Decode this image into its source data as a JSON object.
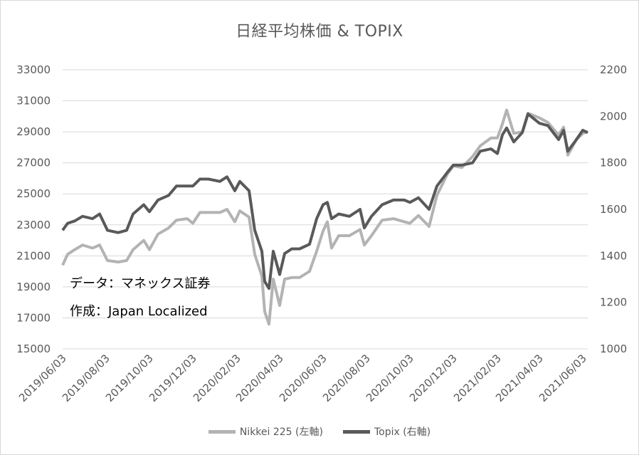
{
  "chart_data": {
    "type": "line",
    "title": "日経平均株価 & TOPIX",
    "annotations": [
      "データ：マネックス証券",
      "作成：Japan Localized"
    ],
    "x_tick_labels": [
      "2019/06/03",
      "2019/08/03",
      "2019/10/03",
      "2019/12/03",
      "2020/02/03",
      "2020/04/03",
      "2020/06/03",
      "2020/08/03",
      "2020/10/03",
      "2020/12/03",
      "2021/02/03",
      "2021/04/03",
      "2021/06/03"
    ],
    "x_range": [
      "2019/06/03",
      "2021/06/10"
    ],
    "y_left": {
      "ticks": [
        15000,
        17000,
        19000,
        21000,
        23000,
        25000,
        27000,
        29000,
        31000,
        33000
      ],
      "range": [
        15000,
        33000
      ]
    },
    "y_right": {
      "ticks": [
        1000,
        1200,
        1400,
        1600,
        1800,
        2000,
        2200
      ],
      "range": [
        1000,
        2200
      ]
    },
    "grid": "horizontal",
    "legend_position": "bottom",
    "series": [
      {
        "name": "Nikkei 225 (左軸)",
        "axis": "left",
        "color": "#b3b3b3",
        "points": [
          [
            "2019/06/03",
            20400
          ],
          [
            "2019/06/10",
            21100
          ],
          [
            "2019/06/20",
            21400
          ],
          [
            "2019/07/01",
            21700
          ],
          [
            "2019/07/15",
            21500
          ],
          [
            "2019/07/25",
            21700
          ],
          [
            "2019/08/05",
            20700
          ],
          [
            "2019/08/20",
            20600
          ],
          [
            "2019/09/01",
            20700
          ],
          [
            "2019/09/10",
            21400
          ],
          [
            "2019/09/25",
            22000
          ],
          [
            "2019/10/03",
            21400
          ],
          [
            "2019/10/15",
            22400
          ],
          [
            "2019/10/30",
            22800
          ],
          [
            "2019/11/10",
            23300
          ],
          [
            "2019/11/25",
            23400
          ],
          [
            "2019/12/03",
            23100
          ],
          [
            "2019/12/13",
            23800
          ],
          [
            "2019/12/25",
            23800
          ],
          [
            "2020/01/10",
            23800
          ],
          [
            "2020/01/20",
            24000
          ],
          [
            "2020/01/31",
            23200
          ],
          [
            "2020/02/07",
            23900
          ],
          [
            "2020/02/20",
            23500
          ],
          [
            "2020/02/28",
            21100
          ],
          [
            "2020/03/09",
            19700
          ],
          [
            "2020/03/13",
            17400
          ],
          [
            "2020/03/19",
            16600
          ],
          [
            "2020/03/25",
            19500
          ],
          [
            "2020/04/03",
            17800
          ],
          [
            "2020/04/10",
            19500
          ],
          [
            "2020/04/20",
            19600
          ],
          [
            "2020/05/01",
            19600
          ],
          [
            "2020/05/15",
            20000
          ],
          [
            "2020/05/25",
            21300
          ],
          [
            "2020/06/03",
            22600
          ],
          [
            "2020/06/09",
            23200
          ],
          [
            "2020/06/15",
            21500
          ],
          [
            "2020/06/25",
            22300
          ],
          [
            "2020/07/10",
            22300
          ],
          [
            "2020/07/25",
            22700
          ],
          [
            "2020/07/31",
            21700
          ],
          [
            "2020/08/10",
            22300
          ],
          [
            "2020/08/25",
            23300
          ],
          [
            "2020/09/10",
            23400
          ],
          [
            "2020/09/25",
            23200
          ],
          [
            "2020/10/03",
            23100
          ],
          [
            "2020/10/15",
            23600
          ],
          [
            "2020/10/30",
            22900
          ],
          [
            "2020/11/10",
            24900
          ],
          [
            "2020/11/25",
            26300
          ],
          [
            "2020/12/03",
            26800
          ],
          [
            "2020/12/15",
            26700
          ],
          [
            "2020/12/30",
            27400
          ],
          [
            "2021/01/10",
            28100
          ],
          [
            "2021/01/25",
            28600
          ],
          [
            "2021/02/03",
            28600
          ],
          [
            "2021/02/10",
            29500
          ],
          [
            "2021/02/16",
            30400
          ],
          [
            "2021/02/26",
            28900
          ],
          [
            "2021/03/10",
            29000
          ],
          [
            "2021/03/18",
            30200
          ],
          [
            "2021/04/03",
            29900
          ],
          [
            "2021/04/15",
            29600
          ],
          [
            "2021/04/30",
            28800
          ],
          [
            "2021/05/07",
            29300
          ],
          [
            "2021/05/13",
            27500
          ],
          [
            "2021/05/25",
            28500
          ],
          [
            "2021/06/03",
            28900
          ],
          [
            "2021/06/10",
            29000
          ]
        ]
      },
      {
        "name": "Topix (右軸)",
        "axis": "right",
        "color": "#595959",
        "points": [
          [
            "2019/06/03",
            1510
          ],
          [
            "2019/06/10",
            1540
          ],
          [
            "2019/06/20",
            1550
          ],
          [
            "2019/07/01",
            1570
          ],
          [
            "2019/07/15",
            1560
          ],
          [
            "2019/07/25",
            1580
          ],
          [
            "2019/08/05",
            1510
          ],
          [
            "2019/08/20",
            1500
          ],
          [
            "2019/09/01",
            1510
          ],
          [
            "2019/09/10",
            1580
          ],
          [
            "2019/09/25",
            1620
          ],
          [
            "2019/10/03",
            1590
          ],
          [
            "2019/10/15",
            1640
          ],
          [
            "2019/10/30",
            1660
          ],
          [
            "2019/11/10",
            1700
          ],
          [
            "2019/11/25",
            1700
          ],
          [
            "2019/12/03",
            1700
          ],
          [
            "2019/12/13",
            1730
          ],
          [
            "2019/12/25",
            1730
          ],
          [
            "2020/01/10",
            1720
          ],
          [
            "2020/01/20",
            1740
          ],
          [
            "2020/01/31",
            1680
          ],
          [
            "2020/02/07",
            1720
          ],
          [
            "2020/02/20",
            1680
          ],
          [
            "2020/02/28",
            1510
          ],
          [
            "2020/03/09",
            1420
          ],
          [
            "2020/03/13",
            1290
          ],
          [
            "2020/03/19",
            1260
          ],
          [
            "2020/03/25",
            1420
          ],
          [
            "2020/04/03",
            1320
          ],
          [
            "2020/04/10",
            1410
          ],
          [
            "2020/04/20",
            1430
          ],
          [
            "2020/05/01",
            1430
          ],
          [
            "2020/05/15",
            1450
          ],
          [
            "2020/05/25",
            1560
          ],
          [
            "2020/06/03",
            1620
          ],
          [
            "2020/06/09",
            1630
          ],
          [
            "2020/06/15",
            1560
          ],
          [
            "2020/06/25",
            1580
          ],
          [
            "2020/07/10",
            1570
          ],
          [
            "2020/07/25",
            1600
          ],
          [
            "2020/07/31",
            1520
          ],
          [
            "2020/08/10",
            1570
          ],
          [
            "2020/08/25",
            1620
          ],
          [
            "2020/09/10",
            1640
          ],
          [
            "2020/09/25",
            1640
          ],
          [
            "2020/10/03",
            1630
          ],
          [
            "2020/10/15",
            1650
          ],
          [
            "2020/10/30",
            1600
          ],
          [
            "2020/11/10",
            1700
          ],
          [
            "2020/11/25",
            1760
          ],
          [
            "2020/12/03",
            1790
          ],
          [
            "2020/12/15",
            1790
          ],
          [
            "2020/12/30",
            1800
          ],
          [
            "2021/01/10",
            1850
          ],
          [
            "2021/01/25",
            1860
          ],
          [
            "2021/02/03",
            1840
          ],
          [
            "2021/02/10",
            1920
          ],
          [
            "2021/02/16",
            1950
          ],
          [
            "2021/02/26",
            1890
          ],
          [
            "2021/03/10",
            1930
          ],
          [
            "2021/03/18",
            2010
          ],
          [
            "2021/04/03",
            1970
          ],
          [
            "2021/04/15",
            1960
          ],
          [
            "2021/04/30",
            1900
          ],
          [
            "2021/05/07",
            1940
          ],
          [
            "2021/05/13",
            1850
          ],
          [
            "2021/05/25",
            1900
          ],
          [
            "2021/06/03",
            1940
          ],
          [
            "2021/06/10",
            1930
          ]
        ]
      }
    ]
  }
}
